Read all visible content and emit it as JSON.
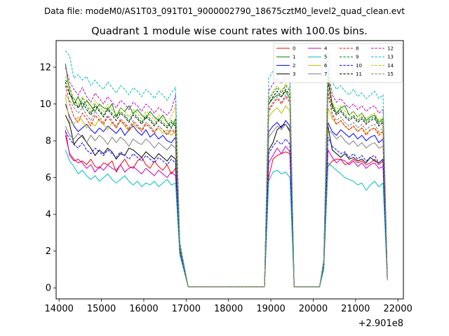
{
  "figure": {
    "suptitle": "Data file: modeM0/AS1T03_091T01_9000002790_18675cztM0_level2_quad_clean.evt"
  },
  "chart_data": {
    "type": "line",
    "title": "Quadrant 1 module wise count rates with 100.0s bins.",
    "xlabel": "",
    "ylabel": "",
    "x_offset_label": "+2.901e8",
    "xlim": [
      13930,
      22130
    ],
    "ylim": [
      -0.6,
      13.45
    ],
    "xticks": [
      14000,
      15000,
      16000,
      17000,
      18000,
      19000,
      20000,
      21000,
      22000
    ],
    "yticks": [
      0,
      2,
      4,
      6,
      8,
      10,
      12
    ],
    "legend": {
      "position": "top-right",
      "columns": 4
    },
    "segments": [
      {
        "name": "obs1",
        "start": 14150,
        "step": 100,
        "count": 28
      },
      {
        "name": "gap1",
        "x": [
          17050,
          18850
        ]
      },
      {
        "name": "obs2",
        "start": 18850,
        "step": 100,
        "count": 8
      },
      {
        "name": "gap2",
        "x": [
          19650,
          20150
        ]
      },
      {
        "name": "obs3",
        "start": 20150,
        "step": 100,
        "count": 17
      }
    ],
    "series": [
      {
        "name": "0",
        "color": "#ff0000",
        "dash": "solid",
        "obs1": [
          8.3,
          7.3,
          7.0,
          6.8,
          6.9,
          6.7,
          7.0,
          6.6,
          6.5,
          6.8,
          6.7,
          6.9,
          6.3,
          6.7,
          7.0,
          6.6,
          6.5,
          6.9,
          7.1,
          6.7,
          6.5,
          6.9,
          6.6,
          6.4,
          6.7,
          6.2,
          6.5,
          2.2
        ],
        "obs2": [
          0.05,
          6.0,
          7.0,
          7.2,
          7.3,
          7.4,
          7.3,
          0.05
        ],
        "obs3": [
          0.05,
          1.2,
          6.6,
          6.9,
          7.0,
          7.0,
          6.7,
          6.8,
          7.0,
          6.8,
          6.9,
          6.7,
          6.8,
          7.0,
          6.7,
          6.9,
          0.6
        ]
      },
      {
        "name": "1",
        "color": "#008000",
        "dash": "solid",
        "obs1": [
          12.2,
          10.6,
          10.0,
          10.4,
          9.8,
          10.2,
          9.9,
          9.6,
          10.0,
          9.8,
          9.7,
          10.0,
          9.3,
          9.8,
          9.6,
          9.9,
          9.5,
          9.7,
          9.4,
          9.2,
          9.6,
          9.3,
          9.1,
          9.4,
          9.0,
          8.7,
          9.2,
          2.4
        ],
        "obs2": [
          0.05,
          10.0,
          10.3,
          10.5,
          10.4,
          10.7,
          10.3,
          0.05
        ],
        "obs3": [
          0.05,
          1.4,
          11.4,
          10.0,
          9.5,
          9.8,
          9.9,
          9.4,
          9.6,
          9.3,
          9.5,
          9.1,
          9.3,
          9.4,
          9.0,
          9.2,
          0.6
        ]
      },
      {
        "name": "2",
        "color": "#0000ff",
        "dash": "solid",
        "obs1": [
          10.0,
          9.3,
          8.8,
          8.5,
          8.7,
          8.9,
          8.6,
          8.4,
          8.7,
          8.5,
          8.8,
          8.6,
          8.4,
          8.7,
          8.3,
          8.6,
          8.8,
          8.5,
          8.3,
          8.6,
          8.2,
          8.4,
          8.1,
          8.3,
          8.0,
          7.9,
          8.2,
          2.1
        ],
        "obs2": [
          0.05,
          8.5,
          8.8,
          9.0,
          8.7,
          9.1,
          8.8,
          0.05
        ],
        "obs3": [
          0.05,
          1.3,
          9.0,
          8.5,
          8.3,
          8.6,
          8.4,
          8.2,
          8.4,
          8.1,
          8.3,
          8.0,
          8.2,
          8.3,
          7.9,
          8.1,
          0.5
        ]
      },
      {
        "name": "3",
        "color": "#000000",
        "dash": "solid",
        "obs1": [
          9.4,
          8.9,
          7.8,
          8.1,
          8.3,
          7.9,
          7.6,
          7.2,
          7.5,
          7.3,
          7.6,
          7.4,
          7.0,
          7.3,
          7.2,
          7.6,
          7.5,
          7.3,
          7.1,
          7.4,
          7.2,
          7.0,
          7.3,
          7.1,
          6.9,
          7.2,
          7.0,
          2.0
        ],
        "obs2": [
          0.05,
          7.5,
          7.9,
          8.6,
          8.8,
          8.9,
          8.5,
          0.05
        ],
        "obs3": [
          0.05,
          1.2,
          8.8,
          7.5,
          7.3,
          7.1,
          7.3,
          7.0,
          7.1,
          6.9,
          7.0,
          6.8,
          7.1,
          6.9,
          6.8,
          7.0,
          0.5
        ]
      },
      {
        "name": "4",
        "color": "#c000c0",
        "dash": "solid",
        "obs1": [
          8.6,
          7.2,
          6.9,
          7.0,
          6.8,
          6.5,
          6.7,
          6.3,
          6.6,
          6.4,
          6.7,
          6.5,
          6.4,
          6.7,
          6.3,
          6.5,
          6.6,
          6.4,
          6.2,
          6.5,
          6.3,
          6.1,
          6.4,
          6.2,
          6.0,
          6.3,
          6.1,
          1.9
        ],
        "obs2": [
          0.05,
          6.8,
          7.2,
          7.6,
          7.3,
          7.7,
          7.4,
          0.05
        ],
        "obs3": [
          0.05,
          1.1,
          7.5,
          7.1,
          6.8,
          7.0,
          6.9,
          6.7,
          6.9,
          6.6,
          6.8,
          6.5,
          6.7,
          6.8,
          6.5,
          6.6,
          0.5
        ]
      },
      {
        "name": "5",
        "color": "#00bfbf",
        "dash": "solid",
        "obs1": [
          7.5,
          6.9,
          6.6,
          6.2,
          6.4,
          6.1,
          5.9,
          6.1,
          5.8,
          6.0,
          6.2,
          5.9,
          5.7,
          5.9,
          6.1,
          5.8,
          5.6,
          5.8,
          5.5,
          5.7,
          5.6,
          5.8,
          5.5,
          5.7,
          5.9,
          5.6,
          5.7,
          1.8
        ],
        "obs2": [
          0.05,
          5.8,
          6.3,
          6.4,
          6.2,
          6.3,
          6.0,
          0.05
        ],
        "obs3": [
          0.05,
          1.0,
          6.8,
          6.6,
          6.4,
          6.2,
          6.0,
          5.9,
          5.8,
          5.6,
          5.7,
          5.3,
          5.6,
          5.8,
          5.5,
          5.7,
          0.4
        ]
      },
      {
        "name": "6",
        "color": "#bfbf00",
        "dash": "solid",
        "obs1": [
          10.4,
          9.0,
          8.9,
          9.3,
          9.1,
          8.7,
          9.0,
          8.8,
          9.2,
          8.9,
          8.6,
          9.0,
          8.7,
          9.1,
          8.8,
          8.5,
          8.9,
          8.7,
          8.6,
          9.0,
          8.8,
          8.5,
          8.7,
          8.4,
          8.6,
          8.3,
          8.5,
          2.2
        ],
        "obs2": [
          0.05,
          9.3,
          9.6,
          9.8,
          9.5,
          9.9,
          9.6,
          0.05
        ],
        "obs3": [
          0.05,
          1.3,
          9.8,
          9.2,
          8.9,
          9.1,
          8.8,
          8.6,
          8.8,
          8.5,
          8.7,
          8.4,
          8.6,
          8.7,
          8.4,
          8.5,
          0.5
        ]
      },
      {
        "name": "7",
        "color": "#808080",
        "dash": "solid",
        "obs1": [
          8.8,
          8.3,
          8.1,
          8.4,
          8.2,
          7.9,
          8.3,
          8.0,
          8.3,
          8.1,
          7.8,
          8.2,
          7.9,
          8.2,
          8.0,
          7.7,
          8.1,
          7.9,
          7.8,
          8.1,
          7.9,
          7.6,
          7.9,
          7.7,
          7.5,
          7.8,
          7.6,
          2.0
        ],
        "obs2": [
          0.05,
          8.2,
          8.5,
          8.8,
          8.6,
          8.9,
          8.6,
          0.05
        ],
        "obs3": [
          0.05,
          1.2,
          8.6,
          8.4,
          8.1,
          8.3,
          8.0,
          7.8,
          8.0,
          7.7,
          7.9,
          7.6,
          7.8,
          7.9,
          7.6,
          7.7,
          0.5
        ]
      },
      {
        "name": "8",
        "color": "#ff0000",
        "dash": "dashed",
        "obs1": [
          11.0,
          10.0,
          9.3,
          9.0,
          9.5,
          9.2,
          8.8,
          9.4,
          9.1,
          8.9,
          9.3,
          9.0,
          8.7,
          9.1,
          8.9,
          8.6,
          9.0,
          8.8,
          8.5,
          8.9,
          8.7,
          8.4,
          8.8,
          8.6,
          8.3,
          8.6,
          8.4,
          2.1
        ],
        "obs2": [
          0.05,
          9.6,
          10.0,
          10.3,
          10.0,
          10.4,
          10.1,
          0.05
        ],
        "obs3": [
          0.05,
          1.3,
          10.6,
          9.4,
          8.9,
          9.1,
          8.8,
          8.6,
          8.8,
          8.5,
          8.7,
          8.3,
          8.6,
          8.7,
          8.3,
          8.5,
          0.5
        ]
      },
      {
        "name": "9",
        "color": "#008000",
        "dash": "dashed",
        "obs1": [
          11.3,
          11.0,
          10.0,
          9.8,
          10.3,
          9.9,
          9.5,
          10.0,
          9.7,
          9.4,
          9.8,
          9.5,
          9.3,
          9.6,
          9.4,
          9.1,
          9.5,
          9.3,
          9.0,
          9.4,
          9.2,
          8.9,
          9.2,
          9.0,
          8.8,
          9.1,
          8.9,
          2.3
        ],
        "obs2": [
          0.05,
          10.2,
          10.6,
          10.9,
          10.6,
          11.0,
          10.7,
          0.05
        ],
        "obs3": [
          0.05,
          1.4,
          11.8,
          9.9,
          9.5,
          9.7,
          9.4,
          9.2,
          9.4,
          9.1,
          9.3,
          9.0,
          9.2,
          9.3,
          8.9,
          9.1,
          0.6
        ]
      },
      {
        "name": "10",
        "color": "#0000ff",
        "dash": "dashed",
        "obs1": [
          8.5,
          8.1,
          7.8,
          7.6,
          7.9,
          7.5,
          7.3,
          7.6,
          7.4,
          7.2,
          7.5,
          7.3,
          7.1,
          7.4,
          7.2,
          7.0,
          7.3,
          7.1,
          6.9,
          7.2,
          7.0,
          6.8,
          7.1,
          6.9,
          6.7,
          7.0,
          6.8,
          2.0
        ],
        "obs2": [
          0.05,
          7.3,
          7.7,
          8.0,
          7.8,
          8.1,
          7.8,
          0.05
        ],
        "obs3": [
          0.05,
          1.2,
          8.2,
          7.7,
          7.5,
          7.3,
          7.4,
          7.1,
          7.3,
          7.0,
          7.2,
          6.9,
          7.1,
          7.2,
          6.8,
          7.0,
          0.5
        ]
      },
      {
        "name": "11",
        "color": "#000000",
        "dash": "dashed",
        "obs1": [
          11.2,
          10.5,
          10.3,
          9.8,
          10.1,
          9.7,
          9.4,
          9.9,
          9.6,
          9.3,
          9.7,
          9.4,
          9.1,
          9.5,
          9.3,
          9.0,
          9.4,
          9.2,
          8.9,
          9.3,
          9.1,
          8.8,
          9.1,
          8.9,
          8.7,
          9.0,
          8.8,
          2.3
        ],
        "obs2": [
          0.05,
          10.0,
          10.4,
          10.7,
          10.4,
          10.8,
          10.5,
          0.05
        ],
        "obs3": [
          0.05,
          1.4,
          11.3,
          9.8,
          9.4,
          9.6,
          9.3,
          9.1,
          9.3,
          9.0,
          9.2,
          8.9,
          9.1,
          9.2,
          8.8,
          9.0,
          0.6
        ]
      },
      {
        "name": "12",
        "color": "#c000c0",
        "dash": "dashed",
        "obs1": [
          12.0,
          11.2,
          10.8,
          10.5,
          10.9,
          10.4,
          10.1,
          10.6,
          10.3,
          10.0,
          10.4,
          10.1,
          9.8,
          10.2,
          10.0,
          9.7,
          10.1,
          9.9,
          9.6,
          10.0,
          9.8,
          9.5,
          9.8,
          9.6,
          9.4,
          9.7,
          10.5,
          2.4
        ],
        "obs2": [
          0.05,
          10.7,
          11.1,
          11.4,
          11.1,
          11.5,
          11.2,
          0.05
        ],
        "obs3": [
          0.05,
          1.5,
          12.0,
          10.5,
          10.1,
          10.3,
          10.0,
          9.8,
          10.0,
          9.7,
          9.9,
          9.6,
          9.8,
          9.9,
          9.5,
          9.7,
          0.6
        ]
      },
      {
        "name": "13",
        "color": "#00bfbf",
        "dash": "dashed",
        "obs1": [
          12.9,
          12.6,
          11.4,
          11.6,
          11.3,
          11.5,
          11.0,
          11.3,
          11.0,
          10.8,
          11.2,
          10.9,
          10.6,
          11.0,
          10.8,
          10.5,
          10.9,
          10.7,
          10.4,
          10.8,
          10.6,
          10.3,
          10.7,
          10.5,
          10.2,
          10.6,
          10.9,
          2.5
        ],
        "obs2": [
          0.05,
          11.4,
          11.8,
          12.0,
          11.7,
          12.1,
          11.8,
          0.05
        ],
        "obs3": [
          0.05,
          1.6,
          12.8,
          11.2,
          10.8,
          11.0,
          10.7,
          10.5,
          10.8,
          10.4,
          10.6,
          10.3,
          10.5,
          10.7,
          10.3,
          10.5,
          0.6
        ]
      },
      {
        "name": "14",
        "color": "#bfbf00",
        "dash": "dashed",
        "obs1": [
          11.5,
          10.8,
          10.3,
          10.0,
          10.4,
          10.1,
          9.7,
          10.2,
          9.9,
          9.6,
          10.0,
          9.7,
          9.4,
          9.8,
          9.6,
          9.3,
          9.7,
          9.5,
          9.2,
          9.6,
          9.4,
          9.1,
          9.4,
          9.2,
          9.0,
          9.3,
          9.9,
          2.3
        ],
        "obs2": [
          0.05,
          10.3,
          10.7,
          11.0,
          10.7,
          11.1,
          10.8,
          0.05
        ],
        "obs3": [
          0.05,
          1.4,
          11.6,
          10.1,
          9.7,
          9.9,
          9.6,
          9.4,
          9.6,
          9.3,
          9.5,
          9.2,
          9.4,
          9.5,
          9.1,
          9.3,
          0.6
        ]
      },
      {
        "name": "15",
        "color": "#808080",
        "dash": "dashed",
        "obs1": [
          10.5,
          10.2,
          9.8,
          9.5,
          9.8,
          9.4,
          9.1,
          9.6,
          9.3,
          9.0,
          9.4,
          9.1,
          8.8,
          9.2,
          9.0,
          8.7,
          9.1,
          8.9,
          8.6,
          9.0,
          8.8,
          8.5,
          8.8,
          8.6,
          8.4,
          8.7,
          8.5,
          2.2
        ],
        "obs2": [
          0.05,
          9.7,
          10.1,
          10.4,
          10.1,
          10.5,
          10.2,
          0.05
        ],
        "obs3": [
          0.05,
          1.3,
          10.9,
          9.5,
          9.1,
          9.3,
          9.0,
          8.8,
          9.0,
          8.7,
          8.9,
          8.6,
          8.8,
          8.9,
          8.5,
          8.7,
          0.5
        ]
      }
    ]
  }
}
